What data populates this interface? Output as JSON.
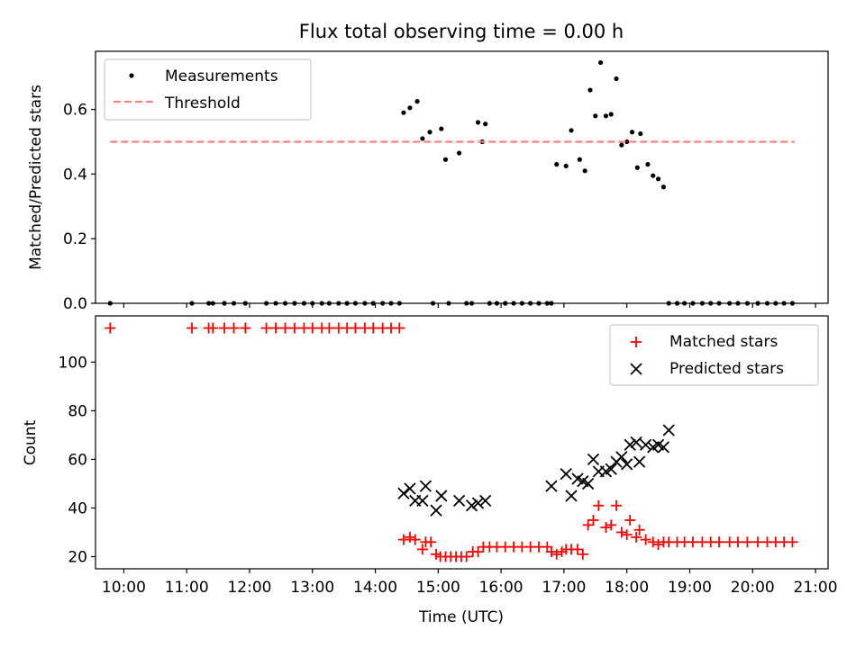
{
  "chart_data": [
    {
      "type": "scatter",
      "title": "Flux total observing time = 0.00 h",
      "xlabel": "",
      "ylabel": "Matched/Predicted stars",
      "xlim": [
        "09:33",
        "21:12"
      ],
      "ylim": [
        0,
        0.78
      ],
      "yticks": [
        0.0,
        0.2,
        0.4,
        0.6
      ],
      "ytick_labels": [
        "0.0",
        "0.2",
        "0.4",
        "0.6"
      ],
      "x_tick_labels_shown": false,
      "legend": {
        "placement": "top-left",
        "entries": [
          "Measurements",
          "Threshold"
        ]
      },
      "series": [
        {
          "name": "Measurements",
          "marker": "dot",
          "color": "#000000",
          "points": [
            [
              "09:47",
              0
            ],
            [
              "11:05",
              0
            ],
            [
              "11:21",
              0
            ],
            [
              "11:25",
              0
            ],
            [
              "11:36",
              0
            ],
            [
              "11:45",
              0
            ],
            [
              "11:56",
              0
            ],
            [
              "12:16",
              0
            ],
            [
              "12:25",
              0
            ],
            [
              "12:34",
              0
            ],
            [
              "12:43",
              0
            ],
            [
              "12:52",
              0
            ],
            [
              "13:00",
              0
            ],
            [
              "13:09",
              0
            ],
            [
              "13:16",
              0
            ],
            [
              "13:25",
              0
            ],
            [
              "13:33",
              0
            ],
            [
              "13:41",
              0
            ],
            [
              "13:50",
              0
            ],
            [
              "13:58",
              0
            ],
            [
              "14:07",
              0
            ],
            [
              "14:15",
              0
            ],
            [
              "14:23",
              0
            ],
            [
              "14:27",
              0.59
            ],
            [
              "14:33",
              0.605
            ],
            [
              "14:40",
              0.625
            ],
            [
              "14:45",
              0.51
            ],
            [
              "14:52",
              0.53
            ],
            [
              "14:55",
              0
            ],
            [
              "15:03",
              0.54
            ],
            [
              "15:07",
              0.445
            ],
            [
              "15:10",
              0
            ],
            [
              "15:20",
              0.465
            ],
            [
              "15:27",
              0
            ],
            [
              "15:32",
              0
            ],
            [
              "15:38",
              0.56
            ],
            [
              "15:42",
              0.5
            ],
            [
              "15:45",
              0.555
            ],
            [
              "15:49",
              0
            ],
            [
              "15:56",
              0
            ],
            [
              "16:04",
              0
            ],
            [
              "16:12",
              0
            ],
            [
              "16:20",
              0
            ],
            [
              "16:28",
              0
            ],
            [
              "16:36",
              0
            ],
            [
              "16:44",
              0
            ],
            [
              "16:48",
              0
            ],
            [
              "16:53",
              0.43
            ],
            [
              "17:02",
              0.425
            ],
            [
              "17:07",
              0.535
            ],
            [
              "17:15",
              0.445
            ],
            [
              "17:20",
              0.41
            ],
            [
              "17:25",
              0.66
            ],
            [
              "17:30",
              0.58
            ],
            [
              "17:35",
              0.745
            ],
            [
              "17:40",
              0.58
            ],
            [
              "17:45",
              0.585
            ],
            [
              "17:50",
              0.695
            ],
            [
              "17:55",
              0.49
            ],
            [
              "18:00",
              0.5
            ],
            [
              "18:05",
              0.53
            ],
            [
              "18:10",
              0.42
            ],
            [
              "18:13",
              0.525
            ],
            [
              "18:20",
              0.43
            ],
            [
              "18:25",
              0.395
            ],
            [
              "18:30",
              0.385
            ],
            [
              "18:35",
              0.36
            ],
            [
              "18:40",
              0
            ],
            [
              "18:48",
              0
            ],
            [
              "18:55",
              0
            ],
            [
              "19:03",
              0
            ],
            [
              "19:12",
              0
            ],
            [
              "19:20",
              0
            ],
            [
              "19:28",
              0
            ],
            [
              "19:38",
              0
            ],
            [
              "19:46",
              0
            ],
            [
              "19:55",
              0
            ],
            [
              "20:05",
              0
            ],
            [
              "20:14",
              0
            ],
            [
              "20:22",
              0
            ],
            [
              "20:30",
              0
            ],
            [
              "20:38",
              0
            ]
          ]
        },
        {
          "name": "Threshold",
          "style": "dashed",
          "color": "#ff7f7f",
          "points": [
            [
              "09:47",
              0.5
            ],
            [
              "20:40",
              0.5
            ]
          ]
        }
      ]
    },
    {
      "type": "scatter",
      "title": "",
      "xlabel": "Time (UTC)",
      "ylabel": "Count",
      "xlim": [
        "09:33",
        "21:12"
      ],
      "ylim": [
        15,
        119
      ],
      "yticks": [
        20,
        40,
        60,
        80,
        100
      ],
      "ytick_labels": [
        "20",
        "40",
        "60",
        "80",
        "100"
      ],
      "xticks": [
        "10:00",
        "11:00",
        "12:00",
        "13:00",
        "14:00",
        "15:00",
        "16:00",
        "17:00",
        "18:00",
        "19:00",
        "20:00",
        "21:00"
      ],
      "xtick_labels": [
        "10:00",
        "11:00",
        "12:00",
        "13:00",
        "14:00",
        "15:00",
        "16:00",
        "17:00",
        "18:00",
        "19:00",
        "20:00",
        "21:00"
      ],
      "legend": {
        "placement": "top-right",
        "entries": [
          "Matched stars",
          "Predicted stars"
        ]
      },
      "series": [
        {
          "name": "Matched stars",
          "marker": "plus",
          "color": "#ff0000",
          "points": [
            [
              "09:47",
              114
            ],
            [
              "11:05",
              114
            ],
            [
              "11:21",
              114
            ],
            [
              "11:25",
              114
            ],
            [
              "11:36",
              114
            ],
            [
              "11:45",
              114
            ],
            [
              "11:56",
              114
            ],
            [
              "12:16",
              114
            ],
            [
              "12:25",
              114
            ],
            [
              "12:34",
              114
            ],
            [
              "12:43",
              114
            ],
            [
              "12:52",
              114
            ],
            [
              "13:00",
              114
            ],
            [
              "13:09",
              114
            ],
            [
              "13:16",
              114
            ],
            [
              "13:25",
              114
            ],
            [
              "13:33",
              114
            ],
            [
              "13:41",
              114
            ],
            [
              "13:50",
              114
            ],
            [
              "13:58",
              114
            ],
            [
              "14:07",
              114
            ],
            [
              "14:15",
              114
            ],
            [
              "14:23",
              114
            ],
            [
              "14:27",
              27
            ],
            [
              "14:33",
              28
            ],
            [
              "14:38",
              27
            ],
            [
              "14:45",
              23
            ],
            [
              "14:48",
              26
            ],
            [
              "14:53",
              26
            ],
            [
              "14:58",
              21
            ],
            [
              "15:02",
              20
            ],
            [
              "15:07",
              20
            ],
            [
              "15:12",
              20
            ],
            [
              "15:17",
              20
            ],
            [
              "15:22",
              20
            ],
            [
              "15:27",
              20
            ],
            [
              "15:33",
              22
            ],
            [
              "15:38",
              22
            ],
            [
              "15:43",
              24
            ],
            [
              "15:49",
              24
            ],
            [
              "15:56",
              24
            ],
            [
              "16:04",
              24
            ],
            [
              "16:12",
              24
            ],
            [
              "16:20",
              24
            ],
            [
              "16:28",
              24
            ],
            [
              "16:36",
              24
            ],
            [
              "16:44",
              24
            ],
            [
              "16:48",
              22
            ],
            [
              "16:53",
              21
            ],
            [
              "16:58",
              22
            ],
            [
              "17:02",
              23
            ],
            [
              "17:07",
              23
            ],
            [
              "17:13",
              23
            ],
            [
              "17:18",
              21
            ],
            [
              "17:23",
              33
            ],
            [
              "17:28",
              35
            ],
            [
              "17:33",
              41
            ],
            [
              "17:40",
              32
            ],
            [
              "17:45",
              33
            ],
            [
              "17:50",
              41
            ],
            [
              "17:55",
              30
            ],
            [
              "18:00",
              29
            ],
            [
              "18:03",
              35
            ],
            [
              "18:09",
              28
            ],
            [
              "18:12",
              31
            ],
            [
              "18:18",
              27
            ],
            [
              "18:25",
              26
            ],
            [
              "18:30",
              25
            ],
            [
              "18:35",
              26
            ],
            [
              "18:40",
              26
            ],
            [
              "18:48",
              26
            ],
            [
              "18:55",
              26
            ],
            [
              "19:03",
              26
            ],
            [
              "19:12",
              26
            ],
            [
              "19:20",
              26
            ],
            [
              "19:28",
              26
            ],
            [
              "19:38",
              26
            ],
            [
              "19:46",
              26
            ],
            [
              "19:55",
              26
            ],
            [
              "20:05",
              26
            ],
            [
              "20:14",
              26
            ],
            [
              "20:22",
              26
            ],
            [
              "20:30",
              26
            ],
            [
              "20:38",
              26
            ]
          ]
        },
        {
          "name": "Predicted stars",
          "marker": "x",
          "color": "#000000",
          "points": [
            [
              "14:27",
              46
            ],
            [
              "14:33",
              48
            ],
            [
              "14:38",
              43
            ],
            [
              "14:45",
              43
            ],
            [
              "14:48",
              49
            ],
            [
              "14:58",
              39
            ],
            [
              "15:03",
              45
            ],
            [
              "15:20",
              43
            ],
            [
              "15:32",
              41
            ],
            [
              "15:38",
              42
            ],
            [
              "15:45",
              43
            ],
            [
              "16:48",
              49
            ],
            [
              "17:02",
              54
            ],
            [
              "17:07",
              45
            ],
            [
              "17:13",
              52
            ],
            [
              "17:18",
              51
            ],
            [
              "17:23",
              50
            ],
            [
              "17:28",
              60
            ],
            [
              "17:33",
              55
            ],
            [
              "17:40",
              55
            ],
            [
              "17:45",
              56
            ],
            [
              "17:50",
              59
            ],
            [
              "17:55",
              61
            ],
            [
              "18:00",
              58
            ],
            [
              "18:03",
              66
            ],
            [
              "18:09",
              67
            ],
            [
              "18:12",
              59
            ],
            [
              "18:18",
              66
            ],
            [
              "18:25",
              65
            ],
            [
              "18:30",
              66
            ],
            [
              "18:35",
              65
            ],
            [
              "18:40",
              72
            ]
          ]
        }
      ]
    }
  ]
}
